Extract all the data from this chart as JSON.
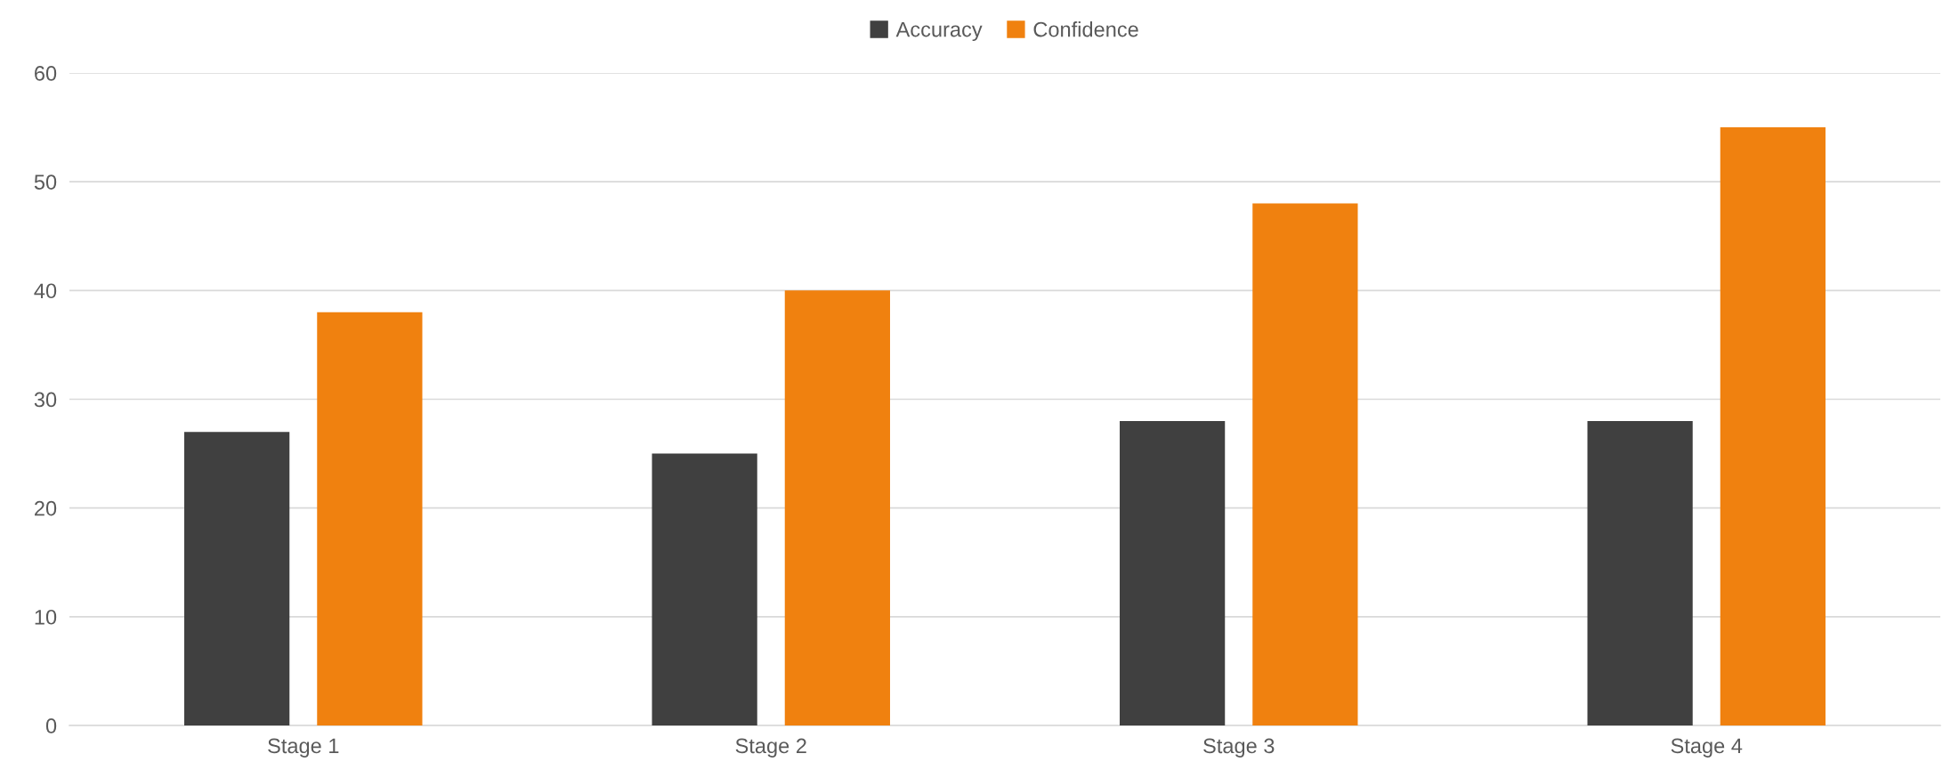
{
  "chart_data": {
    "type": "bar",
    "categories": [
      "Stage 1",
      "Stage 2",
      "Stage 3",
      "Stage 4"
    ],
    "series": [
      {
        "name": "Accuracy",
        "color": "#404040",
        "values": [
          27,
          25,
          28,
          28
        ]
      },
      {
        "name": "Confidence",
        "color": "#f0810f",
        "values": [
          38,
          40,
          48,
          55
        ]
      }
    ],
    "ylim": [
      0,
      60
    ],
    "yticks": [
      0,
      10,
      20,
      30,
      40,
      50,
      60
    ],
    "grid": "y",
    "legend": "top"
  }
}
